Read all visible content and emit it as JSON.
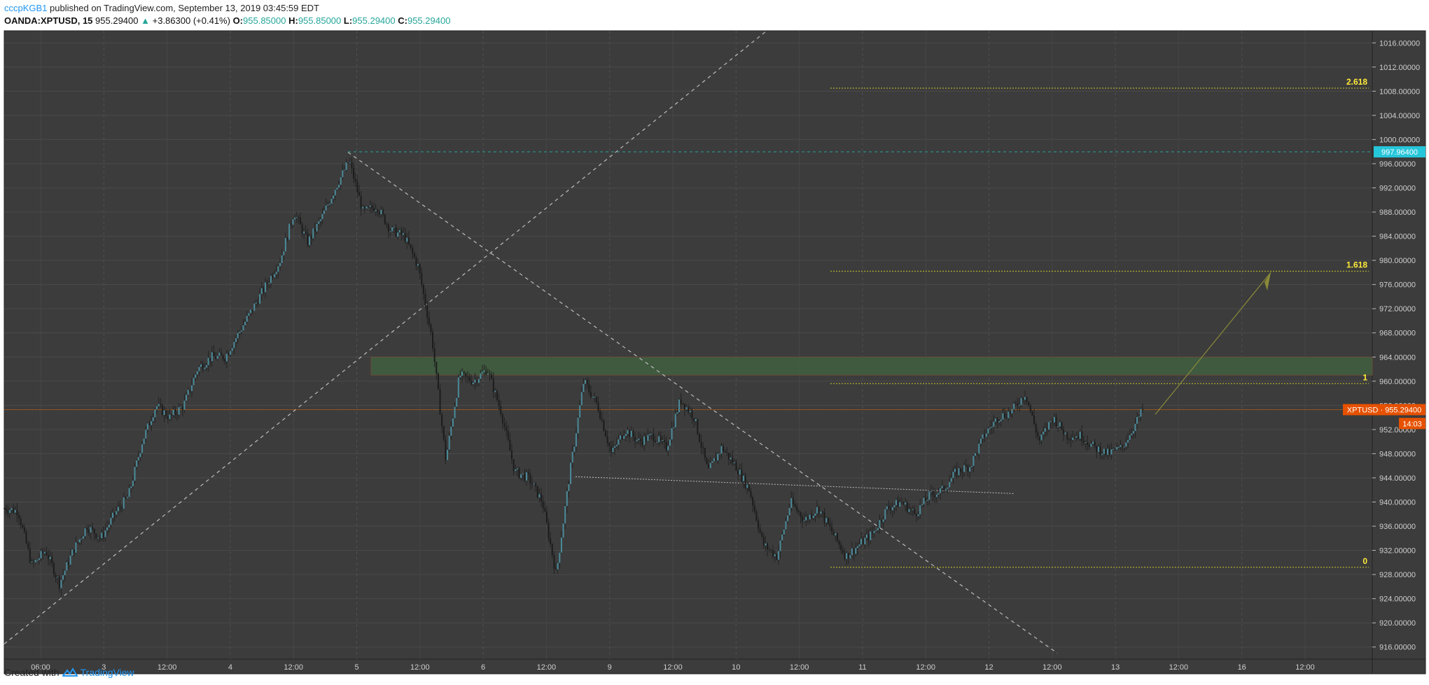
{
  "header": {
    "user": "cccpKGB1",
    "published": "published on TradingView.com, September 13, 2019 03:45:59 EDT",
    "symbol": "OANDA:XPTUSD, 15",
    "last": "955.29400",
    "change": "+3.86300 (+0.41%)",
    "o_label": "O:",
    "o": "955.85000",
    "h_label": "H:",
    "h": "955.85000",
    "l_label": "L:",
    "l": "955.29400",
    "c_label": "C:",
    "c": "955.29400"
  },
  "footer": {
    "created_with": "Created with",
    "brand": "TradingView"
  },
  "chart_data": {
    "type": "candlestick",
    "title": "OANDA:XPTUSD, 15",
    "ylim": [
      914,
      1018
    ],
    "y_ticks": [
      "916.00000",
      "920.00000",
      "924.00000",
      "928.00000",
      "932.00000",
      "936.00000",
      "940.00000",
      "944.00000",
      "948.00000",
      "952.00000",
      "956.00000",
      "960.00000",
      "964.00000",
      "968.00000",
      "972.00000",
      "976.00000",
      "980.00000",
      "984.00000",
      "988.00000",
      "992.00000",
      "996.00000",
      "1000.00000",
      "1004.00000",
      "1008.00000",
      "1012.00000",
      "1016.00000"
    ],
    "x_ticks": [
      "06:00",
      "3",
      "12:00",
      "4",
      "12:00",
      "5",
      "12:00",
      "6",
      "12:00",
      "9",
      "12:00",
      "10",
      "12:00",
      "11",
      "12:00",
      "12",
      "12:00",
      "13",
      "12:00",
      "16",
      "12:00"
    ],
    "price_path": [
      [
        0,
        939
      ],
      [
        2,
        938.5
      ],
      [
        4,
        929.5
      ],
      [
        6,
        932
      ],
      [
        8,
        926.5
      ],
      [
        10,
        932
      ],
      [
        12,
        936
      ],
      [
        14,
        934
      ],
      [
        16,
        938
      ],
      [
        18,
        941
      ],
      [
        20,
        950
      ],
      [
        22,
        956
      ],
      [
        24,
        954
      ],
      [
        26,
        956
      ],
      [
        28,
        962
      ],
      [
        30,
        964
      ],
      [
        32,
        964
      ],
      [
        34,
        968
      ],
      [
        36,
        972
      ],
      [
        38,
        976
      ],
      [
        40,
        980
      ],
      [
        42,
        988
      ],
      [
        44,
        983
      ],
      [
        46,
        987
      ],
      [
        48,
        992
      ],
      [
        50,
        996.5
      ],
      [
        52,
        988
      ],
      [
        54,
        989
      ],
      [
        56,
        985
      ],
      [
        58,
        984
      ],
      [
        60,
        979
      ],
      [
        62,
        967
      ],
      [
        64,
        947
      ],
      [
        66,
        961
      ],
      [
        68,
        960
      ],
      [
        70,
        962
      ],
      [
        72,
        955
      ],
      [
        74,
        945
      ],
      [
        76,
        944
      ],
      [
        78,
        940
      ],
      [
        80,
        928
      ],
      [
        82,
        945
      ],
      [
        84,
        960
      ],
      [
        86,
        956
      ],
      [
        88,
        948
      ],
      [
        90,
        952
      ],
      [
        92,
        950
      ],
      [
        94,
        951
      ],
      [
        96,
        949
      ],
      [
        98,
        957
      ],
      [
        100,
        954
      ],
      [
        102,
        945
      ],
      [
        104,
        949
      ],
      [
        106,
        946
      ],
      [
        108,
        942
      ],
      [
        110,
        933
      ],
      [
        112,
        931
      ],
      [
        114,
        940
      ],
      [
        116,
        937
      ],
      [
        118,
        939
      ],
      [
        120,
        935
      ],
      [
        122,
        931
      ],
      [
        124,
        933
      ],
      [
        126,
        935
      ],
      [
        128,
        939
      ],
      [
        130,
        940
      ],
      [
        132,
        938
      ],
      [
        134,
        941
      ],
      [
        136,
        942
      ],
      [
        138,
        945
      ],
      [
        140,
        946
      ],
      [
        142,
        951
      ],
      [
        144,
        954
      ],
      [
        146,
        955
      ],
      [
        148,
        958
      ],
      [
        150,
        950
      ],
      [
        152,
        954
      ],
      [
        154,
        951
      ],
      [
        156,
        951
      ],
      [
        158,
        949
      ],
      [
        160,
        948
      ],
      [
        162,
        949
      ],
      [
        164,
        953
      ],
      [
        165,
        955.294
      ]
    ],
    "series": [
      {
        "name": "XPTUSD",
        "last": "955.29400",
        "countdown": "14:03"
      }
    ],
    "fibonacci": [
      {
        "label": "2.618",
        "price": 1008.5
      },
      {
        "label": "1.618",
        "price": 978.2
      },
      {
        "label": "1",
        "price": 959.6
      },
      {
        "label": "0",
        "price": 929.2
      }
    ],
    "price_labels": [
      {
        "text": "997.96400",
        "price": 997.964,
        "color": "#26c6da"
      },
      {
        "text": "XPTUSD · 955.29400",
        "price": 955.294,
        "color": "#e65100"
      },
      {
        "text": "14:03",
        "price": 953.0,
        "color": "#e65100"
      }
    ],
    "zone": {
      "from": 961.0,
      "to": 964.0
    },
    "colors": {
      "background": "#3c3c3c",
      "candle": "#4a8a99",
      "fib": "#c8c832",
      "zone": "#3f5f3f",
      "last_line": "#ef6c00",
      "dashed": "#bdbdbd"
    },
    "grid": true
  }
}
